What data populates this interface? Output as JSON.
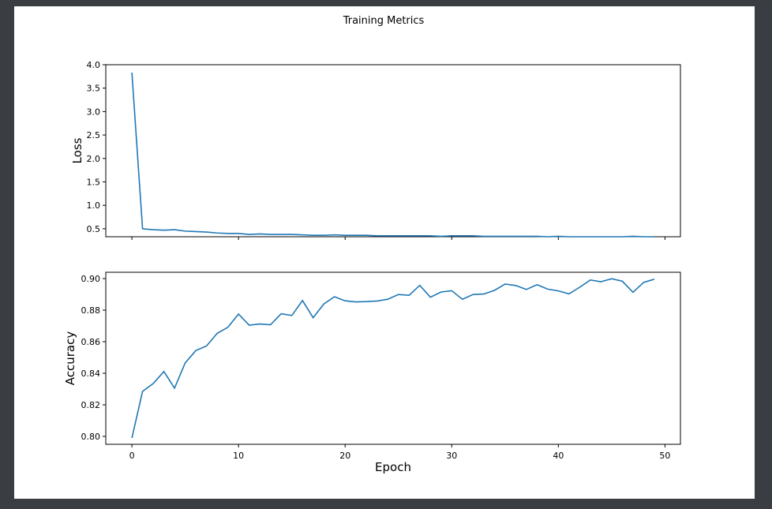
{
  "chart_data": [
    {
      "type": "line",
      "title": "Training Metrics",
      "ylabel": "Loss",
      "xlabel": "",
      "xlim": [
        -2.45,
        51.45
      ],
      "ylim": [
        0.33,
        4.0
      ],
      "yticks": [
        0.5,
        1.0,
        1.5,
        2.0,
        2.5,
        3.0,
        3.5,
        4.0
      ],
      "ytick_labels": [
        "0.5",
        "1.0",
        "1.5",
        "2.0",
        "2.5",
        "3.0",
        "3.5",
        "4.0"
      ],
      "xticks": [
        0,
        10,
        20,
        30,
        40,
        50
      ],
      "grid": false,
      "color": "#1f77b4",
      "series": [
        {
          "x": [
            0,
            1,
            2,
            3,
            4,
            5,
            6,
            7,
            8,
            9,
            10,
            11,
            12,
            13,
            14,
            15,
            16,
            17,
            18,
            19,
            20,
            21,
            22,
            23,
            24,
            25,
            26,
            27,
            28,
            29,
            30,
            31,
            32,
            33,
            34,
            35,
            36,
            37,
            38,
            39,
            40,
            41,
            42,
            43,
            44,
            45,
            46,
            47,
            48,
            49
          ],
          "values": [
            3.83,
            0.5,
            0.48,
            0.47,
            0.48,
            0.45,
            0.44,
            0.43,
            0.41,
            0.4,
            0.4,
            0.38,
            0.39,
            0.38,
            0.38,
            0.38,
            0.37,
            0.36,
            0.36,
            0.37,
            0.36,
            0.36,
            0.36,
            0.35,
            0.35,
            0.35,
            0.35,
            0.35,
            0.35,
            0.34,
            0.35,
            0.35,
            0.35,
            0.34,
            0.34,
            0.34,
            0.34,
            0.34,
            0.34,
            0.33,
            0.34,
            0.33,
            0.33,
            0.33,
            0.33,
            0.33,
            0.33,
            0.34,
            0.33,
            0.33
          ]
        }
      ]
    },
    {
      "type": "line",
      "title": "",
      "ylabel": "Accuracy",
      "xlabel": "Epoch",
      "xlim": [
        -2.45,
        51.45
      ],
      "ylim": [
        0.795,
        0.904
      ],
      "yticks": [
        0.8,
        0.82,
        0.84,
        0.86,
        0.88,
        0.9
      ],
      "ytick_labels": [
        "0.80",
        "0.82",
        "0.84",
        "0.86",
        "0.88",
        "0.90"
      ],
      "xticks": [
        0,
        10,
        20,
        30,
        40,
        50
      ],
      "xtick_labels": [
        "0",
        "10",
        "20",
        "30",
        "40",
        "50"
      ],
      "grid": false,
      "color": "#1f77b4",
      "series": [
        {
          "x": [
            0,
            1,
            2,
            3,
            4,
            5,
            6,
            7,
            8,
            9,
            10,
            11,
            12,
            13,
            14,
            15,
            16,
            17,
            18,
            19,
            20,
            21,
            22,
            23,
            24,
            25,
            26,
            27,
            28,
            29,
            30,
            31,
            32,
            33,
            34,
            35,
            36,
            37,
            38,
            39,
            40,
            41,
            42,
            43,
            44,
            45,
            46,
            47,
            48,
            49
          ],
          "values": [
            0.799,
            0.8285,
            0.8335,
            0.8411,
            0.8306,
            0.8466,
            0.8544,
            0.8573,
            0.8653,
            0.8691,
            0.8775,
            0.8705,
            0.8712,
            0.8707,
            0.8777,
            0.8766,
            0.8861,
            0.8752,
            0.8839,
            0.8885,
            0.8859,
            0.8852,
            0.8854,
            0.8858,
            0.8869,
            0.8899,
            0.8894,
            0.8957,
            0.8882,
            0.8915,
            0.8923,
            0.8869,
            0.8899,
            0.8902,
            0.8925,
            0.8965,
            0.8956,
            0.8931,
            0.8961,
            0.8933,
            0.8922,
            0.8903,
            0.8945,
            0.8991,
            0.898,
            0.8999,
            0.8983,
            0.8913,
            0.8976,
            0.8996
          ]
        }
      ]
    }
  ]
}
